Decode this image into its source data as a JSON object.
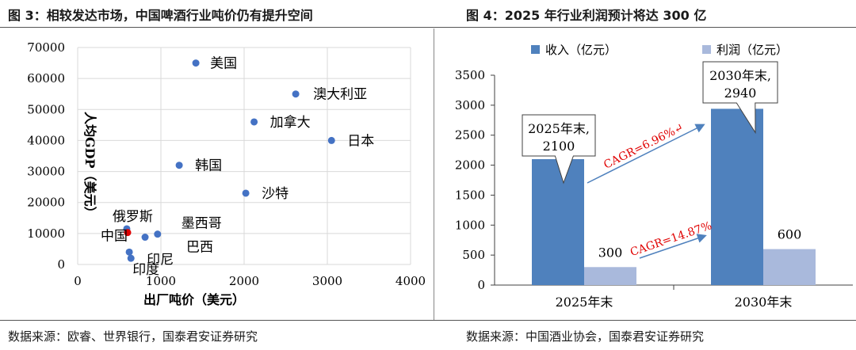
{
  "left_title": "图 3：相较发达市场，中国啤酒行业吨价仍有提升空间",
  "right_title": "图 4：2025 年行业利润预计将达 300 亿",
  "left_source": "数据来源：欧睿、世界银行，国泰君安证券研究",
  "right_source": "数据来源：中国酒业协会，国泰君安证券研究",
  "chart_data": [
    {
      "type": "scatter",
      "title": "",
      "xlabel": "出厂吨价（美元）",
      "ylabel": "人均GDP（美元）",
      "xlim": [
        0,
        4000
      ],
      "ylim": [
        0,
        70000
      ],
      "x_ticks": [
        "0",
        "1000",
        "2000",
        "3000",
        "4000"
      ],
      "y_ticks": [
        "0",
        "10000",
        "20000",
        "30000",
        "40000",
        "50000",
        "60000",
        "70000"
      ],
      "grid": true,
      "point_color": "#4472C4",
      "highlight_color": "#E00000",
      "points": [
        {
          "label": "美国",
          "x": 1420,
          "y": 65000
        },
        {
          "label": "澳大利亚",
          "x": 2620,
          "y": 55000
        },
        {
          "label": "加拿大",
          "x": 2120,
          "y": 46000
        },
        {
          "label": "日本",
          "x": 3050,
          "y": 40000
        },
        {
          "label": "韩国",
          "x": 1220,
          "y": 32000
        },
        {
          "label": "沙特",
          "x": 2020,
          "y": 23000
        },
        {
          "label": "俄罗斯",
          "x": 590,
          "y": 11500
        },
        {
          "label": "中国",
          "x": 600,
          "y": 10300,
          "highlight": true
        },
        {
          "label": "墨西哥",
          "x": 960,
          "y": 9800
        },
        {
          "label": "巴西",
          "x": 810,
          "y": 8800
        },
        {
          "label": "印尼",
          "x": 620,
          "y": 4000
        },
        {
          "label": "印度",
          "x": 640,
          "y": 2000
        }
      ]
    },
    {
      "type": "bar",
      "title": "",
      "categories": [
        "2025年末",
        "2030年末"
      ],
      "series": [
        {
          "name": "收入（亿元）",
          "values": [
            2100,
            2940
          ],
          "color": "#4F81BD"
        },
        {
          "name": "利润（亿元）",
          "values": [
            300,
            600
          ],
          "color": "#A9B9DC"
        }
      ],
      "ylim": [
        0,
        3500
      ],
      "y_ticks": [
        "0",
        "500",
        "1000",
        "1500",
        "2000",
        "2500",
        "3000",
        "3500"
      ],
      "grid": false,
      "legend": "top",
      "data_labels": [
        "2025年末,\n2100",
        "2030年末,\n2940",
        "300",
        "600"
      ],
      "annotations": [
        {
          "text": "CAGR=6.96%↵",
          "color": "#E00000"
        },
        {
          "text": "CAGR=14.87%",
          "color": "#E00000"
        }
      ]
    }
  ]
}
